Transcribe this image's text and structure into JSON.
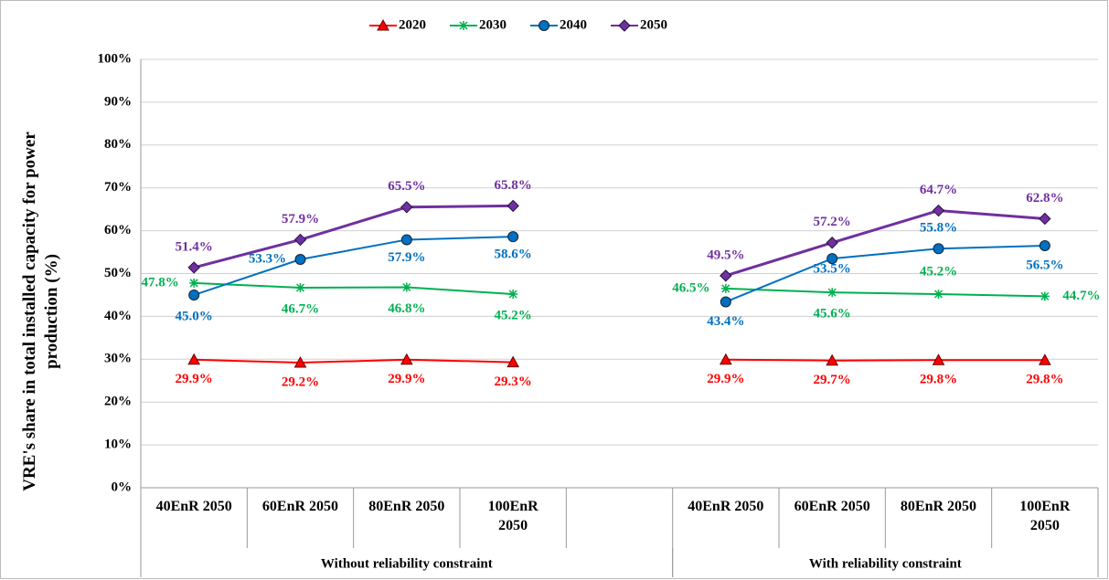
{
  "chart_data": {
    "type": "line",
    "y_label": "VRE's share in total installed capacity for power production (%)",
    "categories": [
      "40EnR 2050",
      "60EnR 2050",
      "80EnR 2050",
      "100EnR 2050",
      null,
      "40EnR 2050",
      "60EnR 2050",
      "80EnR 2050",
      "100EnR 2050"
    ],
    "groups": [
      {
        "label": "Without reliability constraint",
        "span": [
          0,
          4
        ]
      },
      {
        "label": "With reliability constraint",
        "span": [
          5,
          8
        ]
      }
    ],
    "series": [
      {
        "name": "2020",
        "color": "#ff0000",
        "marker": "triangle",
        "values": [
          29.9,
          29.2,
          29.9,
          29.3,
          null,
          29.9,
          29.7,
          29.8,
          29.8
        ],
        "value_labels": [
          "29.9%",
          "29.2%",
          "29.9%",
          "29.3%",
          null,
          "29.9%",
          "29.7%",
          "29.8%",
          "29.8%"
        ]
      },
      {
        "name": "2030",
        "color": "#00b050",
        "marker": "star",
        "values": [
          47.8,
          46.7,
          46.8,
          45.2,
          null,
          46.5,
          45.6,
          45.2,
          44.7
        ],
        "value_labels": [
          "47.8%",
          "46.7%",
          "46.8%",
          "45.2%",
          null,
          "46.5%",
          "45.6%",
          "45.2%",
          "44.7%"
        ]
      },
      {
        "name": "2040",
        "color": "#0070c0",
        "marker": "circle",
        "values": [
          45.0,
          53.3,
          57.9,
          58.6,
          null,
          43.4,
          53.5,
          55.8,
          56.5
        ],
        "value_labels": [
          "45.0%",
          "53.3%",
          "57.9%",
          "58.6%",
          null,
          "43.4%",
          "53.5%",
          "55.8%",
          "56.5%"
        ]
      },
      {
        "name": "2050",
        "color": "#7030a0",
        "marker": "diamond",
        "values": [
          51.4,
          57.9,
          65.5,
          65.8,
          null,
          49.5,
          57.2,
          64.7,
          62.8
        ],
        "value_labels": [
          "51.4%",
          "57.9%",
          "65.5%",
          "65.8%",
          null,
          "49.5%",
          "57.2%",
          "64.7%",
          "62.8%"
        ]
      }
    ],
    "ylim": [
      0,
      100
    ],
    "yticks": [
      {
        "value": 0,
        "label": "0%"
      },
      {
        "value": 10,
        "label": "10%"
      },
      {
        "value": 20,
        "label": "20%"
      },
      {
        "value": 30,
        "label": "30%"
      },
      {
        "value": 40,
        "label": "40%"
      },
      {
        "value": 50,
        "label": "50%"
      },
      {
        "value": 60,
        "label": "60%"
      },
      {
        "value": 70,
        "label": "70%"
      },
      {
        "value": 80,
        "label": "80%"
      },
      {
        "value": 90,
        "label": "90%"
      },
      {
        "value": 100,
        "label": "100%"
      }
    ],
    "grid": true,
    "legend": "top"
  }
}
